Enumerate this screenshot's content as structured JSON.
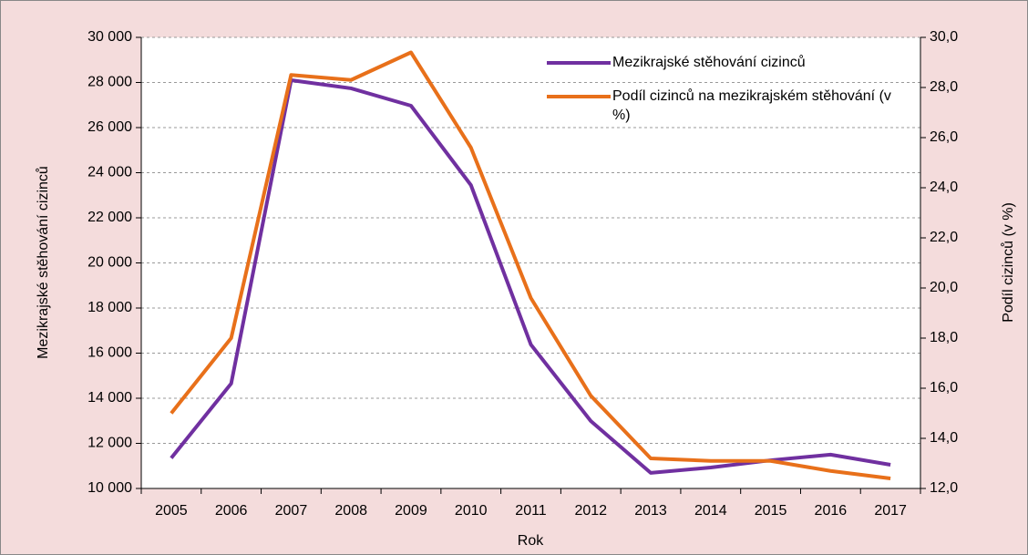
{
  "chart_data": {
    "type": "line",
    "categories": [
      "2005",
      "2006",
      "2007",
      "2008",
      "2009",
      "2010",
      "2011",
      "2012",
      "2013",
      "2014",
      "2015",
      "2016",
      "2017"
    ],
    "x_label": "Rok",
    "y_label": "Mezikrajské stěhování cizinců",
    "y2_label": "Podíl cizinců (v %)",
    "series": [
      {
        "name": "Mezikrajské stěhování cizinců",
        "color": "#7030a0",
        "axis": "y",
        "values": [
          11350,
          14650,
          28100,
          27740,
          26970,
          23450,
          16380,
          12990,
          10690,
          10930,
          11250,
          11500,
          11050
        ]
      },
      {
        "name": "Podíl cizinců na mezikrajském stěhování (v %)",
        "color": "#e8701a",
        "axis": "y2",
        "values": [
          15.0,
          18.0,
          28.5,
          28.3,
          29.4,
          25.6,
          19.6,
          15.7,
          13.2,
          13.1,
          13.1,
          12.7,
          12.4
        ]
      }
    ],
    "ylim": [
      10000,
      30000
    ],
    "yticks": [
      {
        "value": 10000,
        "label": "10 000"
      },
      {
        "value": 12000,
        "label": "12 000"
      },
      {
        "value": 14000,
        "label": "14 000"
      },
      {
        "value": 16000,
        "label": "16 000"
      },
      {
        "value": 18000,
        "label": "18 000"
      },
      {
        "value": 20000,
        "label": "20 000"
      },
      {
        "value": 22000,
        "label": "22 000"
      },
      {
        "value": 24000,
        "label": "24 000"
      },
      {
        "value": 26000,
        "label": "26 000"
      },
      {
        "value": 28000,
        "label": "28 000"
      },
      {
        "value": 30000,
        "label": "30 000"
      }
    ],
    "y2lim": [
      12,
      30
    ],
    "y2ticks": [
      {
        "value": 12,
        "label": "12,0"
      },
      {
        "value": 14,
        "label": "14,0"
      },
      {
        "value": 16,
        "label": "16,0"
      },
      {
        "value": 18,
        "label": "18,0"
      },
      {
        "value": 20,
        "label": "20,0"
      },
      {
        "value": 22,
        "label": "22,0"
      },
      {
        "value": 24,
        "label": "24,0"
      },
      {
        "value": 26,
        "label": "26,0"
      },
      {
        "value": 28,
        "label": "28,0"
      },
      {
        "value": 30,
        "label": "30,0"
      }
    ],
    "grid": true,
    "legend": "upper right"
  }
}
